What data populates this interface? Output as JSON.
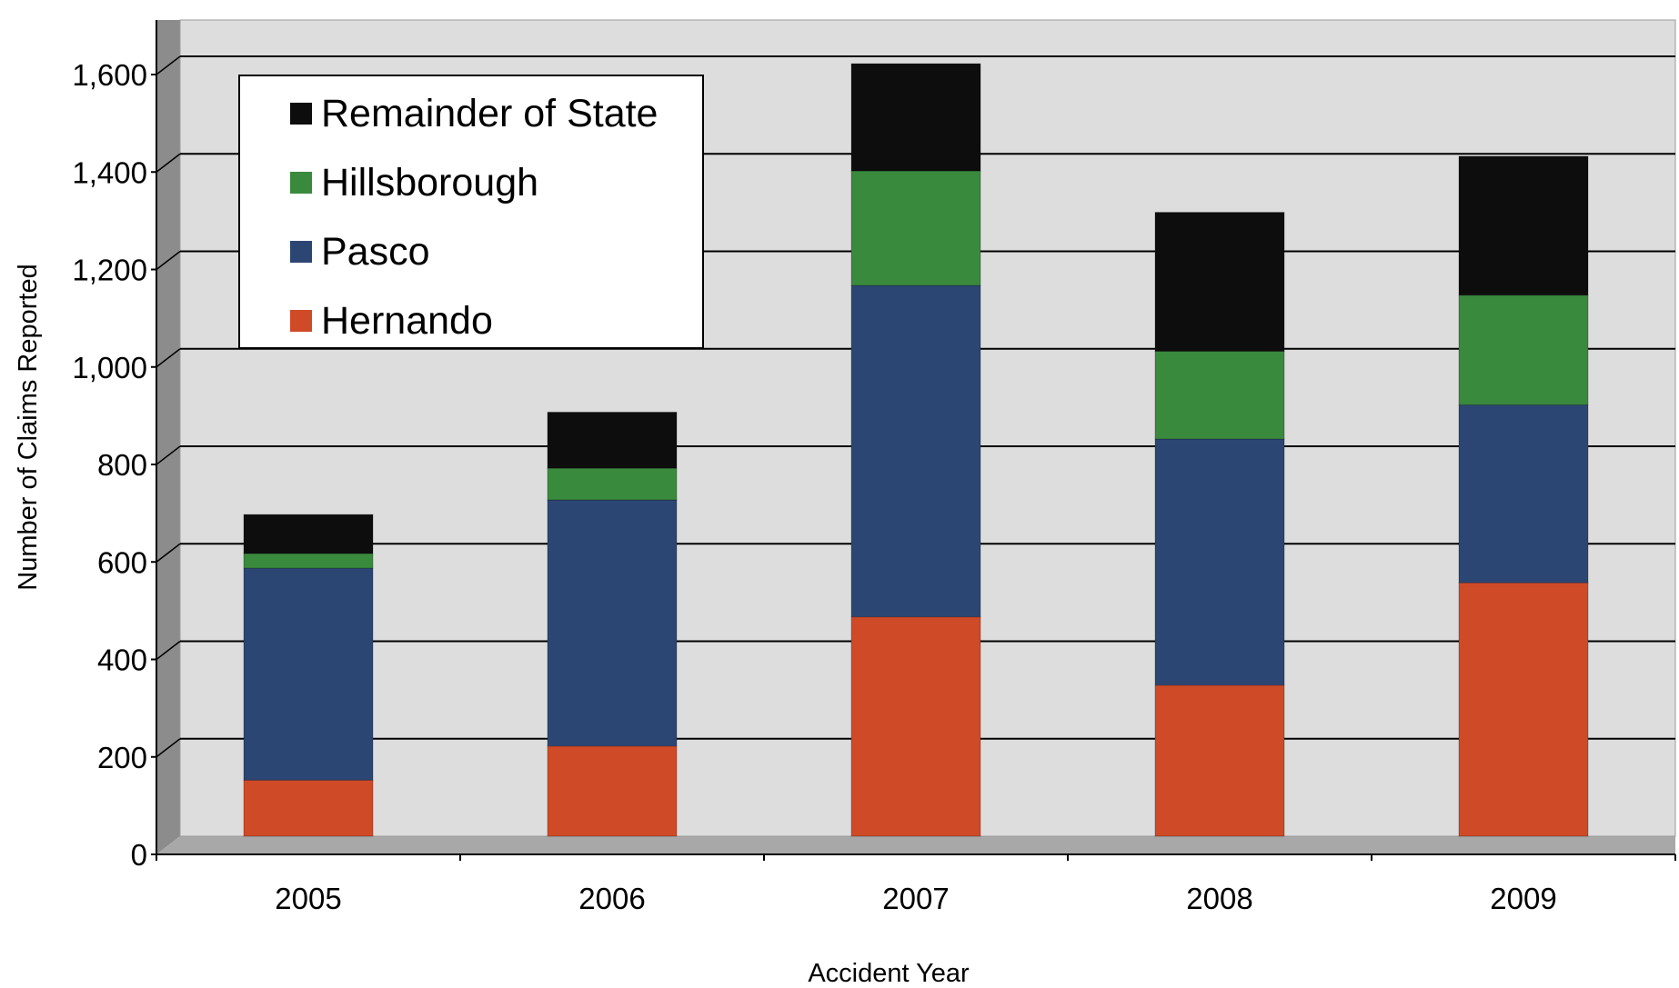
{
  "chart_data": {
    "type": "bar",
    "stacked": true,
    "xlabel": "Accident Year",
    "ylabel": "Number of Claims Reported",
    "ylim": [
      0,
      1600
    ],
    "yticks": [
      0,
      200,
      400,
      600,
      800,
      1000,
      1200,
      1400,
      1600
    ],
    "ytick_labels": [
      "0",
      "200",
      "400",
      "600",
      "800",
      "1,000",
      "1,200",
      "1,400",
      "1,600"
    ],
    "categories": [
      "2005",
      "2006",
      "2007",
      "2008",
      "2009"
    ],
    "series": [
      {
        "name": "Hernando",
        "color": "#cf4a27",
        "values": [
          115,
          185,
          450,
          310,
          520
        ]
      },
      {
        "name": "Pasco",
        "color": "#2c4674",
        "values": [
          435,
          505,
          680,
          505,
          365
        ]
      },
      {
        "name": "Hillsborough",
        "color": "#3a8a3d",
        "values": [
          30,
          65,
          235,
          180,
          225
        ]
      },
      {
        "name": "Remainder of State",
        "color": "#0d0d0d",
        "values": [
          80,
          115,
          220,
          285,
          285
        ]
      }
    ],
    "legend_position": "top-left",
    "grid": true,
    "plot_background": "#dddddd"
  }
}
